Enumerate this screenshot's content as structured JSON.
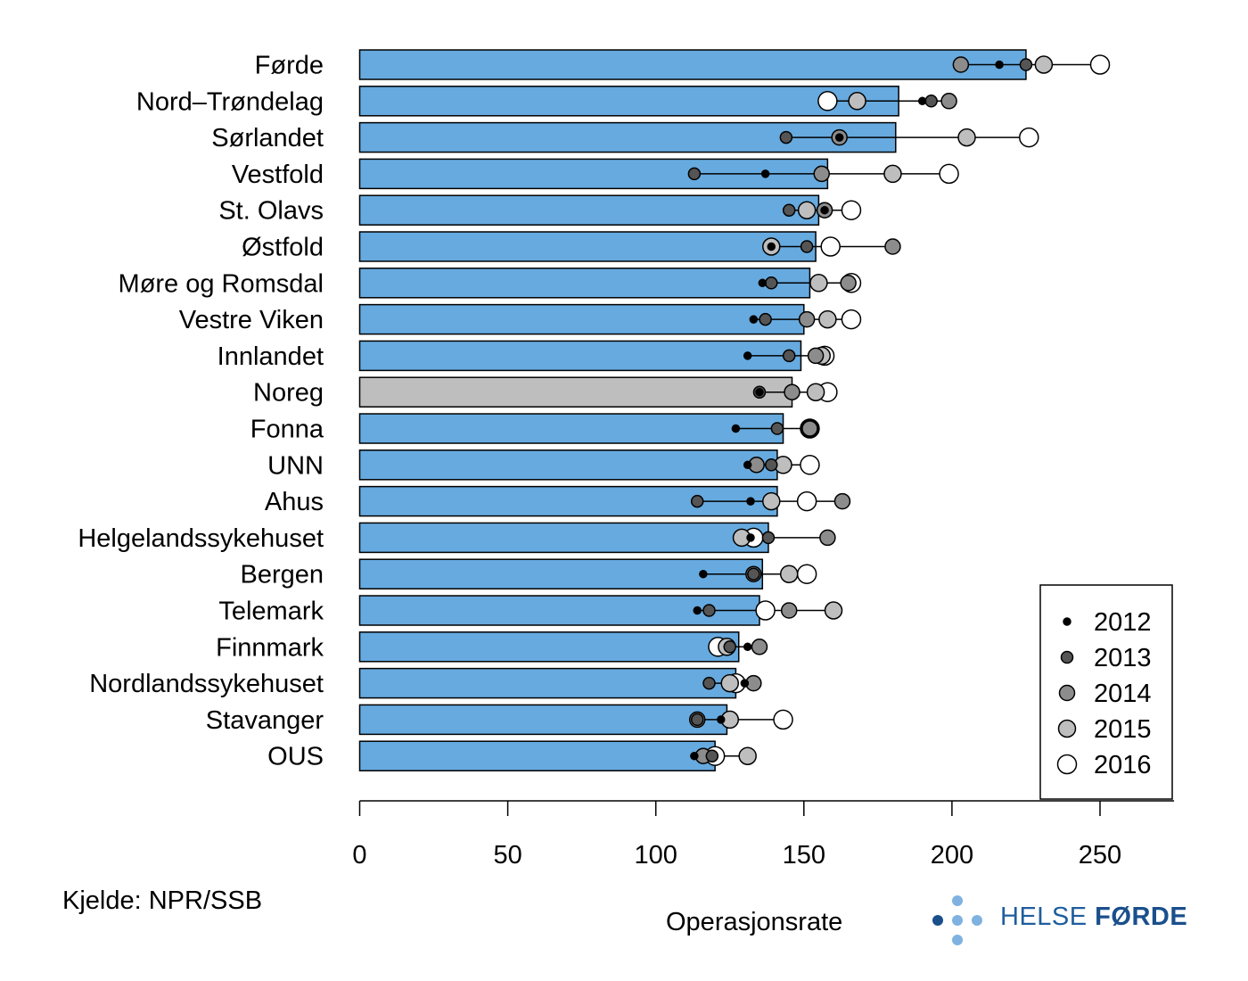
{
  "chart_data": {
    "type": "bar",
    "orientation": "horizontal",
    "categories": [
      "Førde",
      "Nord–Trøndelag",
      "Sørlandet",
      "Vestfold",
      "St. Olavs",
      "Østfold",
      "Møre og Romsdal",
      "Vestre Viken",
      "Innlandet",
      "Noreg",
      "Fonna",
      "UNN",
      "Ahus",
      "Helgelandssykehuset",
      "Bergen",
      "Telemark",
      "Finnmark",
      "Nordlandssykehuset",
      "Stavanger",
      "OUS"
    ],
    "values": [
      225,
      182,
      181,
      158,
      155,
      154,
      152,
      150,
      149,
      146,
      143,
      141,
      141,
      138,
      136,
      135,
      128,
      127,
      124,
      120
    ],
    "highlight_category": "Noreg",
    "bar_color": "#66aadf",
    "highlight_color": "#bebebe",
    "series": [
      {
        "name": "2012",
        "values": [
          216,
          190,
          162,
          137,
          157,
          139,
          136,
          133,
          131,
          135,
          127,
          131,
          132,
          132,
          116,
          114,
          131,
          130,
          122,
          113
        ]
      },
      {
        "name": "2013",
        "values": [
          225,
          193,
          144,
          113,
          145,
          151,
          139,
          137,
          145,
          135,
          141,
          139,
          114,
          138,
          133,
          118,
          125,
          118,
          114,
          119
        ]
      },
      {
        "name": "2014",
        "values": [
          203,
          199,
          162,
          156,
          157,
          180,
          165,
          151,
          154,
          146,
          152,
          134,
          163,
          158,
          133,
          145,
          135,
          133,
          114,
          116
        ]
      },
      {
        "name": "2015",
        "values": [
          231,
          168,
          205,
          180,
          151,
          139,
          155,
          158,
          156,
          154,
          152,
          143,
          139,
          129,
          145,
          160,
          124,
          125,
          125,
          131
        ]
      },
      {
        "name": "2016",
        "values": [
          250,
          158,
          226,
          199,
          166,
          159,
          166,
          166,
          157,
          158,
          152,
          152,
          151,
          133,
          151,
          137,
          121,
          127,
          143,
          120
        ]
      }
    ],
    "xlim": [
      0,
      275
    ],
    "xticks": [
      "0",
      "50",
      "100",
      "150",
      "200",
      "250"
    ],
    "xlabel": "Operasjonsrate",
    "legend_position": "bottom-right"
  },
  "source": "Kjelde: NPR/SSB",
  "logo": {
    "text_light": "HELSE",
    "text_bold": "FØRDE",
    "dot_light": "#7fb2e0",
    "dot_dark": "#1a4f8c"
  }
}
